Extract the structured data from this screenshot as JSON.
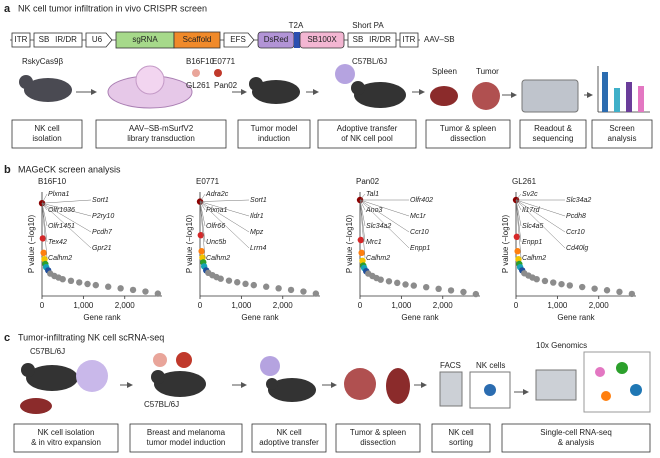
{
  "panel_a": {
    "letter": "a",
    "title": "NK cell tumor infiltration in vivo CRISPR screen",
    "construct": [
      "ITR",
      "SB",
      "IR/DR",
      "U6",
      "sgRNA",
      "Scaffold",
      "EFS",
      "DsRed",
      "T2A",
      "SB100X",
      "Short PA",
      "SB",
      "IR/DR",
      "ITR",
      "AAV–SB"
    ],
    "labels": [
      "RskyCas9β",
      "B16F10",
      "E0771",
      "GL261",
      "Pan02",
      "C57BL/6J",
      "Spleen",
      "Tumor"
    ],
    "steps": [
      [
        "NK cell",
        "isolation"
      ],
      [
        "AAV–SB-mSurfV2",
        "library transduction"
      ],
      [
        "Tumor model",
        "induction"
      ],
      [
        "Adoptive transfer",
        "of NK cell pool"
      ],
      [
        "Tumor & spleen",
        "dissection"
      ],
      [
        "Readout &",
        "sequencing"
      ],
      [
        "Screen",
        "analysis"
      ]
    ]
  },
  "panel_b": {
    "letter": "b",
    "title": "MAGeCK screen analysis"
  },
  "chart_data": [
    {
      "type": "scatter",
      "title": "B16F10",
      "x_label": "Gene rank",
      "y_label": "P value (−log10)",
      "x": [
        1,
        20,
        40,
        60,
        80,
        100,
        150,
        200,
        300,
        400,
        500,
        700,
        900,
        1100,
        1300,
        1600,
        1900,
        2200,
        2500,
        2800
      ],
      "values": [
        5.8,
        3.6,
        2.7,
        2.3,
        2.0,
        1.8,
        1.6,
        1.4,
        1.25,
        1.15,
        1.05,
        0.95,
        0.85,
        0.75,
        0.68,
        0.58,
        0.48,
        0.38,
        0.28,
        0.15
      ],
      "color": "#8c8c8c",
      "xlim": [
        0,
        2900
      ],
      "xticks": [
        0,
        {
          "value": 1000,
          "label": "1,000"
        },
        {
          "value": 2000,
          "label": "2,000"
        }
      ],
      "ylim": [
        0,
        6.5
      ],
      "annotations": [
        "Plxna1",
        "Sort1",
        "Olfr1036",
        "P2ry10",
        "Olfr1451",
        "Pcdh7",
        "Tex42",
        "Gpr21",
        "Calhm2"
      ]
    },
    {
      "type": "scatter",
      "title": "E0771",
      "x_label": "Gene rank",
      "y_label": "P value (−log10)",
      "x": [
        1,
        20,
        40,
        60,
        80,
        100,
        150,
        200,
        300,
        400,
        500,
        700,
        900,
        1100,
        1300,
        1600,
        1900,
        2200,
        2500,
        2800
      ],
      "values": [
        5.9,
        3.8,
        2.8,
        2.4,
        2.1,
        1.85,
        1.6,
        1.45,
        1.3,
        1.18,
        1.08,
        0.96,
        0.86,
        0.76,
        0.68,
        0.58,
        0.48,
        0.38,
        0.28,
        0.15
      ],
      "color": "#8c8c8c",
      "xlim": [
        0,
        2900
      ],
      "xticks": [
        0,
        {
          "value": 1000,
          "label": "1,000"
        },
        {
          "value": 2000,
          "label": "2,000"
        }
      ],
      "ylim": [
        0,
        6.5
      ],
      "annotations": [
        "Adra2c",
        "Sort1",
        "Plxna1",
        "Ildr1",
        "Olfr66",
        "Mpz",
        "Unc5b",
        "Lrrn4",
        "Calhm2"
      ]
    },
    {
      "type": "scatter",
      "title": "Pan02",
      "x_label": "Gene rank",
      "y_label": "P value (−log10)",
      "x": [
        1,
        20,
        40,
        60,
        80,
        100,
        150,
        200,
        300,
        400,
        500,
        700,
        900,
        1100,
        1300,
        1600,
        1900,
        2200,
        2500,
        2800
      ],
      "values": [
        6.0,
        3.5,
        2.7,
        2.2,
        1.9,
        1.75,
        1.55,
        1.4,
        1.25,
        1.12,
        1.02,
        0.92,
        0.82,
        0.72,
        0.65,
        0.55,
        0.45,
        0.35,
        0.25,
        0.12
      ],
      "color": "#8c8c8c",
      "xlim": [
        0,
        2900
      ],
      "xticks": [
        0,
        {
          "value": 1000,
          "label": "1,000"
        },
        {
          "value": 2000,
          "label": "2,000"
        }
      ],
      "ylim": [
        0,
        6.5
      ],
      "annotations": [
        "Tal1",
        "Olfr402",
        "Ano3",
        "Mc1r",
        "Slc34a2",
        "Ccr10",
        "Mrc1",
        "Enpp1",
        "Calhm2"
      ]
    },
    {
      "type": "scatter",
      "title": "GL261",
      "x_label": "Gene rank",
      "y_label": "P value (−log10)",
      "x": [
        1,
        20,
        40,
        60,
        80,
        100,
        150,
        200,
        300,
        400,
        500,
        700,
        900,
        1100,
        1300,
        1600,
        1900,
        2200,
        2500,
        2800
      ],
      "values": [
        6.0,
        3.7,
        2.8,
        2.3,
        2.0,
        1.8,
        1.6,
        1.42,
        1.28,
        1.15,
        1.05,
        0.94,
        0.84,
        0.74,
        0.66,
        0.56,
        0.46,
        0.36,
        0.26,
        0.13
      ],
      "color": "#8c8c8c",
      "xlim": [
        0,
        2900
      ],
      "xticks": [
        0,
        {
          "value": 1000,
          "label": "1,000"
        },
        {
          "value": 2000,
          "label": "2,000"
        }
      ],
      "ylim": [
        0,
        6.5
      ],
      "annotations": [
        "Sv2c",
        "Slc34a2",
        "Il17rd",
        "Pcdh8",
        "Slc4a5",
        "Ccr10",
        "Enpp1",
        "Cd40lg",
        "Calhm2"
      ]
    }
  ],
  "panel_c": {
    "letter": "c",
    "title": "Tumor-infiltrating NK cell scRNA-seq",
    "labels": [
      "C57BL/6J",
      "C57BL/6J",
      "FACS",
      "NK cells",
      "10x Genomics"
    ],
    "steps": [
      [
        "NK cell isolation",
        "& in vitro expansion"
      ],
      [
        "Breast and melanoma",
        "tumor model induction"
      ],
      [
        "NK cell",
        "adoptive transfer"
      ],
      [
        "Tumor & spleen",
        "dissection"
      ],
      [
        "NK cell",
        "sorting"
      ],
      [
        "Single-cell RNA-seq",
        "& analysis"
      ]
    ]
  }
}
